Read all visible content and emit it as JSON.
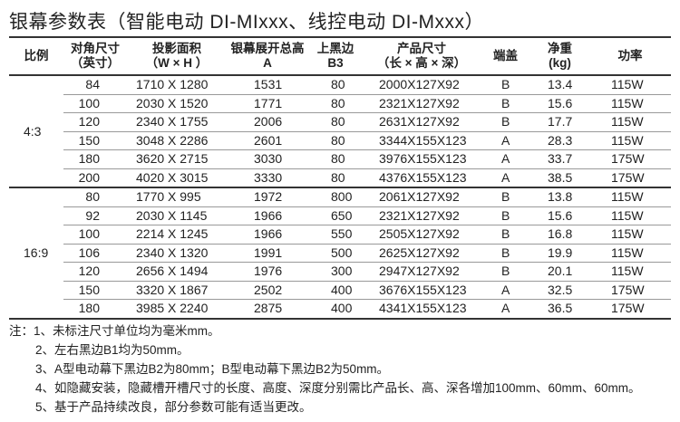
{
  "title": "银幕参数表（智能电动 DI-MIxxx、线控电动 DI-Mxxx）",
  "headers": [
    [
      "比例"
    ],
    [
      "对角尺寸",
      "（英寸）"
    ],
    [
      "投影面积",
      "（W × H ）"
    ],
    [
      "银幕展开总高",
      "A"
    ],
    [
      "上黑边",
      "B3"
    ],
    [
      "产品尺寸",
      "（长 × 高 × 深）"
    ],
    [
      "端盖"
    ],
    [
      "净重",
      "(kg)"
    ],
    [
      "功率"
    ]
  ],
  "groups": [
    {
      "ratio": "4:3",
      "rows": [
        [
          "84",
          "1710 X 1280",
          "1531",
          "80",
          "2000X127X92",
          "B",
          "13.4",
          "115W"
        ],
        [
          "100",
          "2030 X 1520",
          "1771",
          "80",
          "2321X127X92",
          "B",
          "15.6",
          "115W"
        ],
        [
          "120",
          "2340 X 1755",
          "2006",
          "80",
          "2631X127X92",
          "B",
          "17.7",
          "115W"
        ],
        [
          "150",
          "3048 X 2286",
          "2601",
          "80",
          "3344X155X123",
          "A",
          "28.3",
          "115W"
        ],
        [
          "180",
          "3620 X 2715",
          "3030",
          "80",
          "3976X155X123",
          "A",
          "33.7",
          "175W"
        ],
        [
          "200",
          "4020 X 3015",
          "3330",
          "80",
          "4376X155X123",
          "A",
          "38.5",
          "175W"
        ]
      ]
    },
    {
      "ratio": "16:9",
      "rows": [
        [
          "80",
          "1770 X 995",
          "1972",
          "800",
          "2061X127X92",
          "B",
          "13.8",
          "115W"
        ],
        [
          "92",
          "2030 X 1145",
          "1966",
          "650",
          "2321X127X92",
          "B",
          "15.6",
          "115W"
        ],
        [
          "100",
          "2214 X 1245",
          "1966",
          "550",
          "2505X127X92",
          "B",
          "16.8",
          "115W"
        ],
        [
          "106",
          "2340 X 1320",
          "1991",
          "500",
          "2625X127X92",
          "B",
          "19.9",
          "115W"
        ],
        [
          "120",
          "2656 X 1494",
          "1976",
          "300",
          "2947X127X92",
          "B",
          "20.1",
          "115W"
        ],
        [
          "150",
          "3320 X 1867",
          "2502",
          "400",
          "3676X155X123",
          "A",
          "32.5",
          "175W"
        ],
        [
          "180",
          "3985 X 2240",
          "2875",
          "400",
          "4341X155X123",
          "A",
          "36.5",
          "175W"
        ]
      ]
    }
  ],
  "notes": [
    "注：1、未标注尺寸单位均为毫米mm。",
    "2、左右黑边B1均为50mm。",
    "3、A型电动幕下黑边B2为80mm；B型电动幕下黑边B2为50mm。",
    "4、如隐藏安装，隐藏槽开槽尺寸的长度、高度、深度分别需比产品长、高、深各增加100mm、60mm、60mm。",
    "5、基于产品持续改良，部分参数可能有适当更改。"
  ]
}
